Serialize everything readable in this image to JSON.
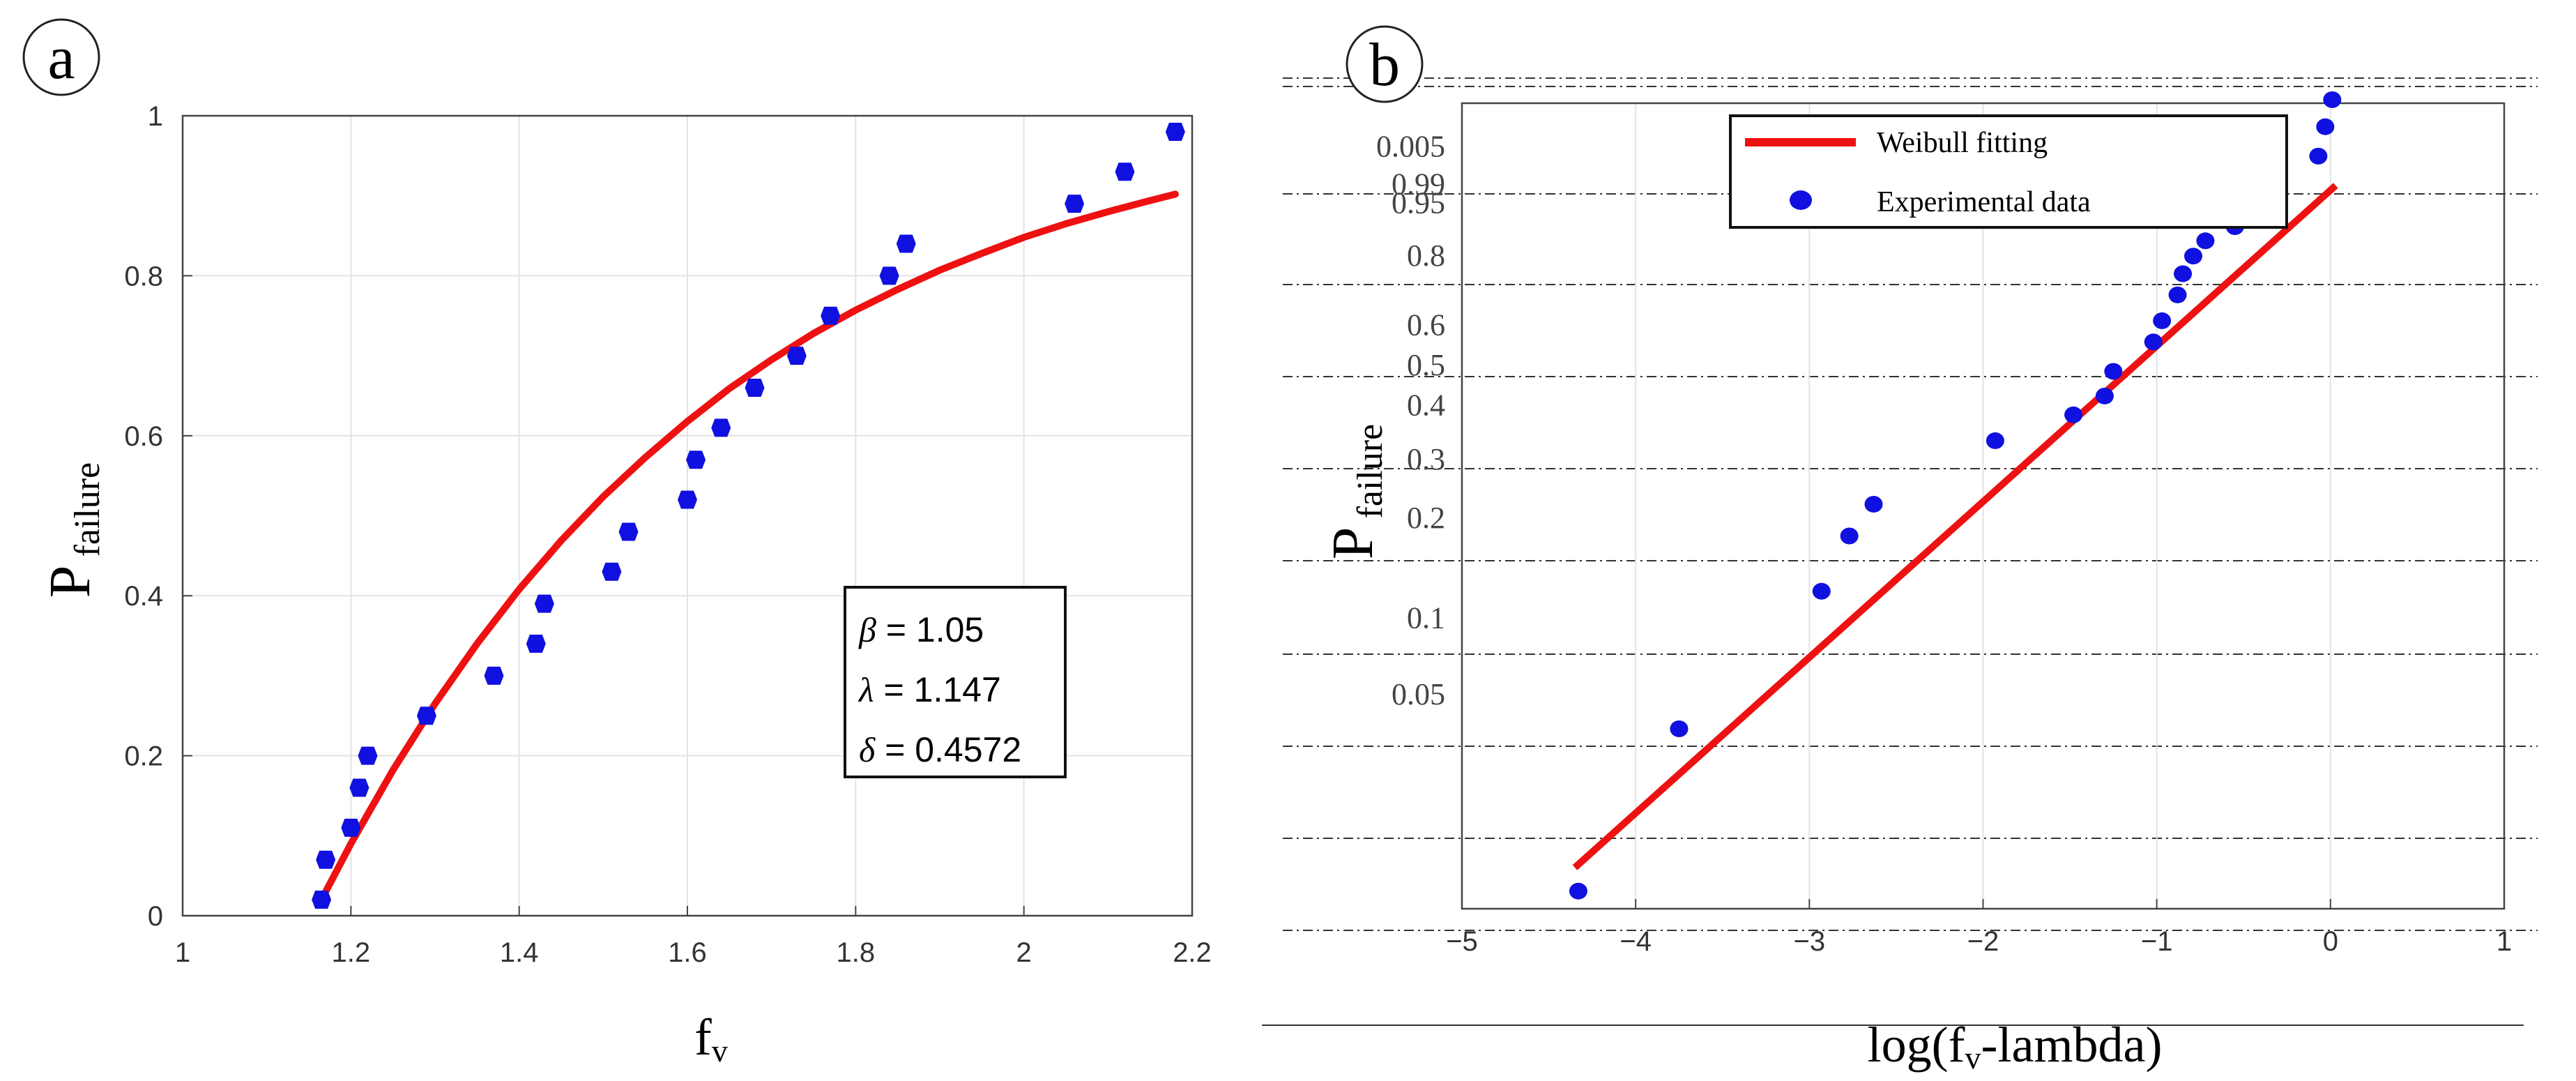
{
  "panels": {
    "a": {
      "label": "a"
    },
    "b": {
      "label": "b"
    }
  },
  "colors": {
    "fit_line": "#ee1111",
    "points": "#1010e0",
    "grid": "#e3e3e3",
    "axis": "#444444",
    "dashed_grid": "#333333"
  },
  "chart_data": [
    {
      "panel": "a",
      "type": "scatter",
      "xlabel": "f",
      "xlabel_sub": "v",
      "ylabel": "P",
      "ylabel_sub": "failure",
      "xlim": [
        1,
        2.2
      ],
      "ylim": [
        0,
        1
      ],
      "xticks": [
        1,
        1.2,
        1.4,
        1.6,
        1.8,
        2,
        2.2
      ],
      "xtick_labels": [
        "1",
        "1.2",
        "1.4",
        "1.6",
        "1.8",
        "2",
        "2.2"
      ],
      "yticks": [
        0,
        0.2,
        0.4,
        0.6,
        0.8,
        1
      ],
      "ytick_labels": [
        "0",
        "0.2",
        "0.4",
        "0.6",
        "0.8",
        "1"
      ],
      "grid": true,
      "annotation": [
        {
          "symbol": "β",
          "text": " = 1.05"
        },
        {
          "symbol": "λ",
          "text": " = 1.147"
        },
        {
          "symbol": "δ",
          "text": " = 0.4572"
        }
      ],
      "series": [
        {
          "kind": "points",
          "x": [
            1.165,
            1.17,
            1.2,
            1.21,
            1.22,
            1.29,
            1.37,
            1.42,
            1.43,
            1.51,
            1.53,
            1.6,
            1.61,
            1.64,
            1.68,
            1.73,
            1.77,
            1.84,
            1.86,
            2.06,
            2.12,
            2.18
          ],
          "y": [
            0.02,
            0.07,
            0.11,
            0.16,
            0.2,
            0.25,
            0.3,
            0.34,
            0.39,
            0.43,
            0.48,
            0.52,
            0.57,
            0.61,
            0.66,
            0.7,
            0.75,
            0.8,
            0.84,
            0.89,
            0.93,
            0.98
          ]
        },
        {
          "kind": "line",
          "x": [
            1.165,
            1.2,
            1.25,
            1.3,
            1.35,
            1.4,
            1.45,
            1.5,
            1.55,
            1.6,
            1.65,
            1.7,
            1.75,
            1.8,
            1.85,
            1.9,
            1.95,
            2.0,
            2.05,
            2.1,
            2.15,
            2.18
          ],
          "y": [
            0.02,
            0.09,
            0.182,
            0.265,
            0.34,
            0.408,
            0.469,
            0.524,
            0.573,
            0.618,
            0.659,
            0.695,
            0.728,
            0.757,
            0.783,
            0.807,
            0.828,
            0.848,
            0.865,
            0.88,
            0.894,
            0.902
          ]
        }
      ]
    },
    {
      "panel": "b",
      "type": "scatter",
      "xlabel": "log(f",
      "xlabel_sub": "v",
      "xlabel_tail": "-lambda)",
      "ylabel": "P",
      "ylabel_sub": "failure",
      "xlim": [
        -5,
        1
      ],
      "xticks": [
        -5,
        -4,
        -3,
        -2,
        -1,
        0,
        1
      ],
      "xtick_labels": [
        "−5",
        "−4",
        "−3",
        "−2",
        "−1",
        "0",
        "1"
      ],
      "y_scale": "weibull probability (log(-log(1-P)))",
      "yticks": [
        0.005,
        0.99,
        0.95,
        0.8,
        0.6,
        0.5,
        0.4,
        0.3,
        0.2,
        0.1,
        0.05
      ],
      "ytick_labels": [
        "0.005",
        "0.99",
        "0.95",
        "0.8",
        "0.6",
        "0.5",
        "0.4",
        "0.3",
        "0.2",
        "0.1",
        "0.05"
      ],
      "ytick_positions_log": [
        1.68,
        1.36,
        1.2,
        0.75,
        0.16,
        -0.18,
        -0.52,
        -0.98,
        -1.48,
        -2.33,
        -2.98
      ],
      "ylim_log": [
        -4.8,
        2.05
      ],
      "grid": "dashed horizontal lines",
      "legend": {
        "position": "top-center",
        "entries": [
          "Weibull fitting",
          "Experimental data"
        ]
      },
      "series": [
        {
          "name": "Experimental data",
          "kind": "points",
          "x": [
            -4.33,
            -3.75,
            -2.93,
            -2.77,
            -2.63,
            -1.93,
            -1.48,
            -1.3,
            -1.25,
            -1.02,
            -0.97,
            -0.88,
            -0.85,
            -0.79,
            -0.72,
            -0.55,
            -0.48,
            -0.37,
            -0.32,
            -0.07,
            -0.03,
            0.01
          ],
          "y_log": [
            -4.65,
            -3.27,
            -2.1,
            -1.63,
            -1.36,
            -0.82,
            -0.6,
            -0.44,
            -0.23,
            0.02,
            0.2,
            0.42,
            0.6,
            0.75,
            0.88,
            1.0,
            1.12,
            1.27,
            1.47,
            1.6,
            1.85,
            2.08
          ]
        },
        {
          "name": "Weibull fitting",
          "kind": "line",
          "x": [
            -4.35,
            0.03
          ],
          "y_log": [
            -4.45,
            1.35
          ]
        }
      ]
    }
  ]
}
